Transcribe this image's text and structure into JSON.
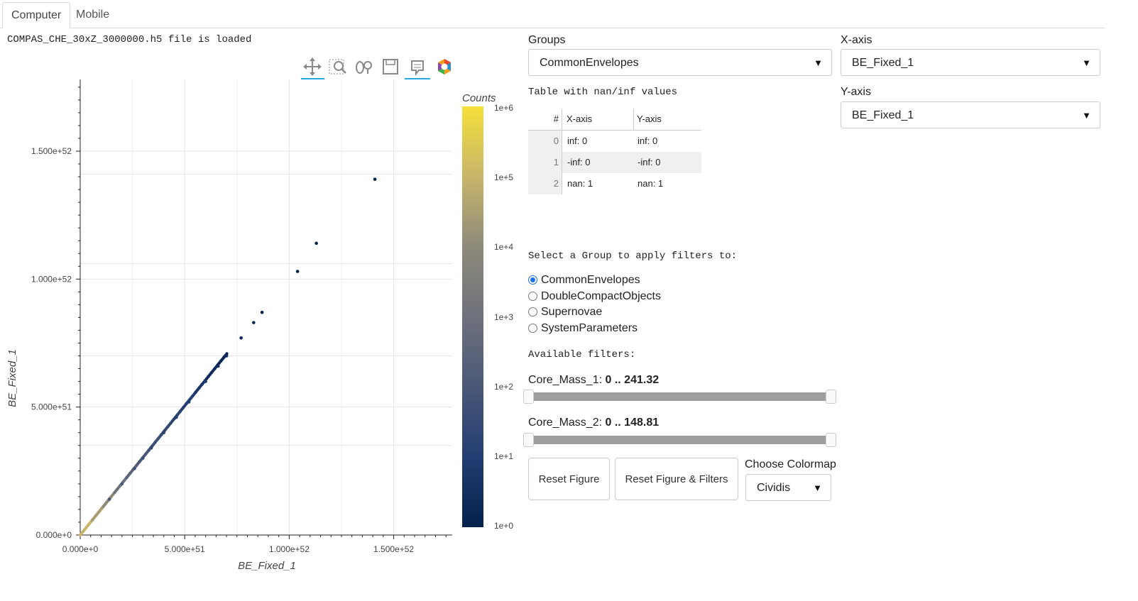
{
  "tabs": [
    {
      "label": "Computer"
    },
    {
      "label": "Mobile"
    }
  ],
  "status_text": "COMPAS_CHE_30xZ_3000000.h5 file is loaded",
  "toolbar": {
    "icons": [
      "pan-icon",
      "box-zoom-icon",
      "wheel-zoom-icon",
      "save-icon",
      "hover-icon",
      "bokeh-logo-icon"
    ]
  },
  "groups": {
    "label": "Groups",
    "value": "CommonEnvelopes"
  },
  "xaxis_select": {
    "label": "X-axis",
    "value": "BE_Fixed_1"
  },
  "yaxis_select": {
    "label": "Y-axis",
    "value": "BE_Fixed_1"
  },
  "naninf": {
    "title": "Table with nan/inf values",
    "headers": [
      "#",
      "X-axis",
      "Y-axis"
    ],
    "rows": [
      [
        "0",
        "inf: 0",
        "inf: 0"
      ],
      [
        "1",
        "-inf: 0",
        "-inf: 0"
      ],
      [
        "2",
        "nan: 1",
        "nan: 1"
      ]
    ]
  },
  "filter_group": {
    "title": "Select a Group to apply filters to:",
    "options": [
      "CommonEnvelopes",
      "DoubleCompactObjects",
      "Supernovae",
      "SystemParameters"
    ],
    "selected": "CommonEnvelopes"
  },
  "filters": {
    "title": "Available filters:",
    "items": [
      {
        "name": "Core_Mass_1: ",
        "range": "0 .. 241.32",
        "fraction_start": 0,
        "fraction_end": 1
      },
      {
        "name": "Core_Mass_2: ",
        "range": "0 .. 148.81",
        "fraction_start": 0,
        "fraction_end": 1
      }
    ]
  },
  "buttons": {
    "reset_figure": "Reset Figure",
    "reset_all": "Reset Figure & Filters"
  },
  "colormap": {
    "label": "Choose Colormap",
    "value": "Cividis"
  },
  "chart_data": {
    "type": "scatter",
    "xlabel": "BE_Fixed_1",
    "ylabel": "BE_Fixed_1",
    "xlim": [
      0,
      1.78e+52
    ],
    "ylim": [
      0,
      1.78e+52
    ],
    "x_ticks": [
      {
        "v": 0,
        "label": "0.000e+0"
      },
      {
        "v": 5e+51,
        "label": "5.000e+51"
      },
      {
        "v": 1e+52,
        "label": "1.000e+52"
      },
      {
        "v": 1.5e+52,
        "label": "1.500e+52"
      }
    ],
    "y_ticks": [
      {
        "v": 0,
        "label": "0.000e+0"
      },
      {
        "v": 5e+51,
        "label": "5.000e+51"
      },
      {
        "v": 1e+52,
        "label": "1.000e+52"
      },
      {
        "v": 1.5e+52,
        "label": "1.500e+52"
      }
    ],
    "colorbar": {
      "title": "Counts",
      "ticks": [
        "1e+6",
        "1e+5",
        "1e+4",
        "1e+3",
        "1e+2",
        "1e+1",
        "1e+0"
      ],
      "colors": [
        "#f5e03a",
        "#c8b56a",
        "#8d8a7a",
        "#6f717c",
        "#4a5877",
        "#223d72",
        "#03224c"
      ]
    },
    "points": [
      {
        "x": 1.4e+51,
        "y": 1.4e+51,
        "c": "#4a5877"
      },
      {
        "x": 2e+51,
        "y": 2e+51,
        "c": "#4a5877"
      },
      {
        "x": 2.6e+51,
        "y": 2.6e+51,
        "c": "#3d4f74"
      },
      {
        "x": 3e+51,
        "y": 3e+51,
        "c": "#3d4f74"
      },
      {
        "x": 3.4e+51,
        "y": 3.4e+51,
        "c": "#33496f"
      },
      {
        "x": 4e+51,
        "y": 4e+51,
        "c": "#2b426d"
      },
      {
        "x": 4.6e+51,
        "y": 4.6e+51,
        "c": "#223d72"
      },
      {
        "x": 5.2e+51,
        "y": 5.2e+51,
        "c": "#223d72"
      },
      {
        "x": 6e+51,
        "y": 6e+51,
        "c": "#1a3568"
      },
      {
        "x": 6.6e+51,
        "y": 6.6e+51,
        "c": "#0f2b5e"
      },
      {
        "x": 7e+51,
        "y": 7e+51,
        "c": "#0f2b5e"
      },
      {
        "x": 7.7e+51,
        "y": 7.7e+51,
        "c": "#0a2657"
      },
      {
        "x": 8.3e+51,
        "y": 8.3e+51,
        "c": "#0a2657"
      },
      {
        "x": 8.7e+51,
        "y": 8.7e+51,
        "c": "#03224c"
      },
      {
        "x": 1.04e+52,
        "y": 1.03e+52,
        "c": "#03224c"
      },
      {
        "x": 1.13e+52,
        "y": 1.14e+52,
        "c": "#03224c"
      },
      {
        "x": 1.41e+52,
        "y": 1.39e+52,
        "c": "#03224c"
      }
    ]
  }
}
